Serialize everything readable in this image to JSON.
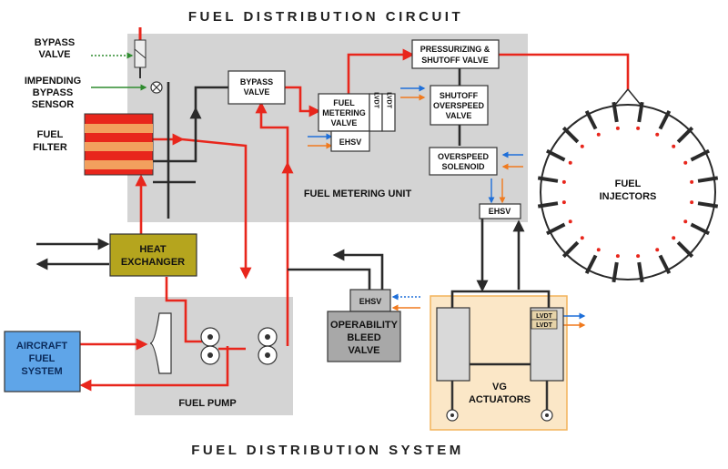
{
  "title_top": "FUEL DISTRIBUTION  CIRCUIT",
  "title_bottom": "FUEL DISTRIBUTION SYSTEM",
  "labels": {
    "bypass_valve_left": [
      "BYPASS",
      "VALVE"
    ],
    "impending_bypass_sensor": [
      "IMPENDING",
      "BYPASS",
      "SENSOR"
    ],
    "fuel_filter": [
      "FUEL",
      "FILTER"
    ],
    "bypass_valve_box": [
      "BYPASS",
      "VALVE"
    ],
    "fuel_metering_valve": [
      "FUEL",
      "METERING",
      "VALVE"
    ],
    "lvdt": "LVDT",
    "ehsv": "EHSV",
    "pressurizing_shutoff": [
      "PRESSURIZING &",
      "SHUTOFF VALVE"
    ],
    "shutoff_overspeed": [
      "SHUTOFF",
      "OVERSPEED",
      "VALVE"
    ],
    "overspeed_solenoid": [
      "OVERSPEED",
      "SOLENOID"
    ],
    "fuel_metering_unit": "FUEL METERING UNIT",
    "fuel_injectors": [
      "FUEL",
      "INJECTORS"
    ],
    "heat_exchanger": [
      "HEAT",
      "EXCHANGER"
    ],
    "aircraft_fuel_system": [
      "AIRCRAFT",
      "FUEL",
      "SYSTEM"
    ],
    "fuel_pump": "FUEL PUMP",
    "operability_bleed_valve": [
      "OPERABILITY",
      "BLEED",
      "VALVE"
    ],
    "vg_actuators": [
      "VG",
      "ACTUATORS"
    ]
  },
  "colors": {
    "fuel_line": "#e8261c",
    "return_line": "#2a2a2a",
    "fmu_bg": "#d4d4d4",
    "pump_bg": "#d4d4d4",
    "heat_exchanger": "#b5a51e",
    "aircraft_fuel": "#5fa5e8",
    "obv": "#a8a8a8",
    "vg_bg": "#fbe7c7",
    "signal_blue": "#1e6fd9",
    "signal_orange": "#f07a1e"
  }
}
